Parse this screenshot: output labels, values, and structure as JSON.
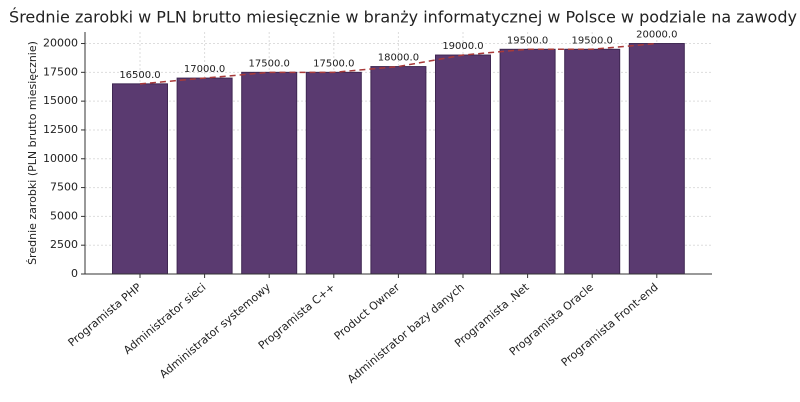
{
  "chart_data": {
    "type": "bar",
    "title": "Średnie zarobki w PLN brutto miesięcznie w branży informatycznej w Polsce w podziale na zawody",
    "y_label": "Średnie zarobki (PLN brutto miesięcznie)",
    "categories": [
      "Programista PHP",
      "Administrator sieci",
      "Administrator systemowy",
      "Programista C++",
      "Product Owner",
      "Administrator bazy danych",
      "Programista .Net",
      "Programista Oracle",
      "Programista Front-end"
    ],
    "values": [
      16500,
      17000,
      17500,
      17500,
      18000,
      19000,
      19500,
      19500,
      20000
    ],
    "value_labels": [
      "16500.0",
      "17000.0",
      "17500.0",
      "17500.0",
      "18000.0",
      "19000.0",
      "19500.0",
      "19500.0",
      "20000.0"
    ],
    "color": "#5a3a70",
    "trend_line": true,
    "line_color": "#a83a3a",
    "line_style": "dashed",
    "ylim": [
      0,
      21000
    ],
    "yticks": [
      0,
      2500,
      5000,
      7500,
      10000,
      12500,
      15000,
      17500,
      20000
    ],
    "grid": true
  }
}
